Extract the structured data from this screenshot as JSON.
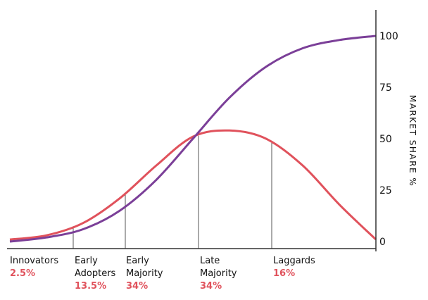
{
  "chart_data": {
    "type": "line",
    "title": "",
    "xlabel": "",
    "ylabel": "MARKET SHARE %",
    "ylim": [
      0,
      100
    ],
    "y_ticks": [
      "100",
      "75",
      "50",
      "25",
      "0"
    ],
    "grid": false,
    "series": [
      {
        "name": "",
        "color": "#e0525c",
        "shape": "bell curve (adoption rate)",
        "x": [
          0,
          10,
          20,
          30,
          40,
          50,
          60,
          70,
          80,
          90,
          100
        ],
        "values": [
          1,
          3,
          9,
          21,
          37,
          51,
          54,
          50,
          37,
          18,
          1
        ]
      },
      {
        "name": "",
        "color": "#7b3f98",
        "shape": "S-curve (cumulative market share)",
        "x": [
          0,
          10,
          20,
          30,
          40,
          50,
          60,
          70,
          80,
          90,
          100
        ],
        "values": [
          0,
          2,
          6,
          15,
          30,
          50,
          70,
          85,
          94,
          98,
          100
        ]
      }
    ],
    "segments": [
      {
        "name_lines": [
          "Innovators"
        ],
        "pct": "2.5%"
      },
      {
        "name_lines": [
          "Early",
          "Adopters"
        ],
        "pct": "13.5%"
      },
      {
        "name_lines": [
          "Early",
          "Majority"
        ],
        "pct": "34%"
      },
      {
        "name_lines": [
          "Late",
          "Majority"
        ],
        "pct": "34%"
      },
      {
        "name_lines": [
          "Laggards"
        ],
        "pct": "16%"
      }
    ],
    "colors": {
      "bell": "#e0525c",
      "scurve": "#7b3f98",
      "axis": "#333333",
      "pct_text": "#e0525c"
    }
  }
}
